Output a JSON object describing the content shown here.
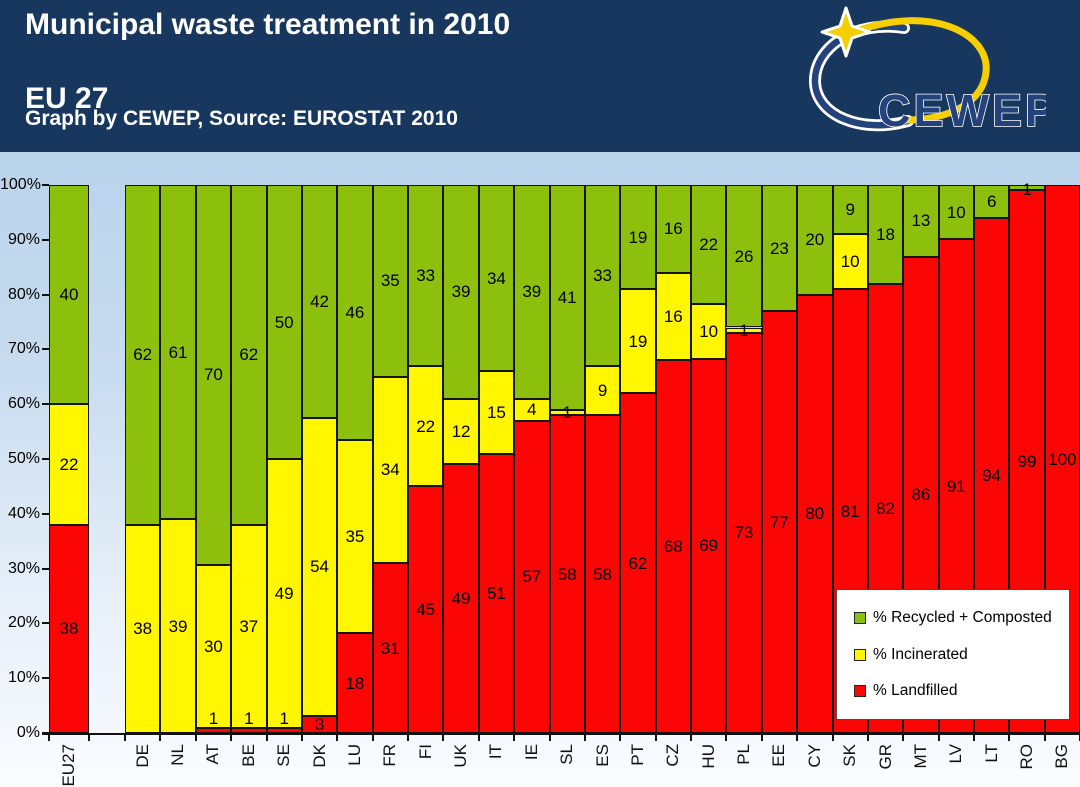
{
  "header": {
    "title_line1": "Municipal waste treatment in 2010",
    "title_line2": "EU 27",
    "subtitle": "Graph by CEWEP, Source: EUROSTAT 2010",
    "logo_text": "CEWEP"
  },
  "colors": {
    "header_bg": "#17375E",
    "chart_bg_top": "#B9D3EB",
    "chart_bg_bottom": "#FAFCFF",
    "landfilled": "#FB0505",
    "incinerated": "#FFF600",
    "recycled": "#8CC00D",
    "bar_border": "#141414"
  },
  "chart_data": {
    "type": "bar",
    "stacked": true,
    "title": "Municipal waste treatment in 2010 EU 27",
    "xlabel": "",
    "ylabel": "",
    "ylim": [
      0,
      100
    ],
    "grid": false,
    "legend_position": "bottom-right",
    "y_ticks": [
      "0%",
      "10%",
      "20%",
      "30%",
      "40%",
      "50%",
      "60%",
      "70%",
      "80%",
      "90%",
      "100%"
    ],
    "categories": [
      "EU27",
      "DE",
      "NL",
      "AT",
      "BE",
      "SE",
      "DK",
      "LU",
      "FR",
      "FI",
      "UK",
      "IT",
      "IE",
      "SL",
      "ES",
      "PT",
      "CZ",
      "HU",
      "PL",
      "EE",
      "CY",
      "SK",
      "GR",
      "MT",
      "LV",
      "LT",
      "RO",
      "BG"
    ],
    "series": [
      {
        "name": "% Landfilled",
        "color_key": "landfilled",
        "values": [
          38,
          0,
          0,
          1,
          1,
          1,
          3,
          18,
          31,
          45,
          49,
          51,
          57,
          58,
          58,
          62,
          68,
          69,
          73,
          77,
          80,
          81,
          82,
          86,
          91,
          94,
          99,
          100
        ]
      },
      {
        "name": "% Incinerated",
        "color_key": "incinerated",
        "values": [
          22,
          38,
          39,
          30,
          37,
          49,
          54,
          35,
          34,
          22,
          12,
          15,
          4,
          1,
          9,
          19,
          16,
          10,
          1,
          0,
          0,
          10,
          0,
          0,
          0,
          0,
          0,
          0
        ]
      },
      {
        "name": "% Recycled + Composted",
        "color_key": "recycled",
        "values": [
          40,
          62,
          61,
          70,
          62,
          50,
          42,
          46,
          35,
          33,
          39,
          34,
          39,
          41,
          33,
          19,
          16,
          22,
          26,
          23,
          20,
          9,
          18,
          13,
          10,
          6,
          1,
          0
        ]
      }
    ],
    "legend": [
      {
        "label": "% Recycled + Composted",
        "color_key": "recycled"
      },
      {
        "label": "% Incinerated",
        "color_key": "incinerated"
      },
      {
        "label": "% Landfilled",
        "color_key": "landfilled"
      }
    ]
  }
}
